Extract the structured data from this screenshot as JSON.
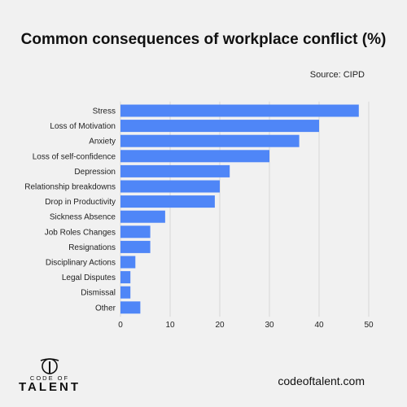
{
  "brand": {
    "url": "codeoftalent.com",
    "logo_line1": "CODE OF",
    "logo_line2": "TALENT"
  },
  "colors": {
    "bar": "#4f86f7",
    "grid": "#d6d6d6",
    "background": "#f1f1f1"
  },
  "chart_data": {
    "type": "bar",
    "orientation": "horizontal",
    "title": "Common consequences of workplace conflict (%)",
    "source": "Source: CIPD",
    "categories": [
      "Stress",
      "Loss of Motivation",
      "Anxiety",
      "Loss of self-confidence",
      "Depression",
      "Relationship breakdowns",
      "Drop in Productivity",
      "Sickness Absence",
      "Job Roles Changes",
      "Resignations",
      "Disciplinary Actions",
      "Legal Disputes",
      "Dismissal",
      "Other"
    ],
    "values": [
      48,
      40,
      36,
      30,
      22,
      20,
      19,
      9,
      6,
      6,
      3,
      2,
      2,
      4
    ],
    "xlim": [
      0,
      50
    ],
    "xticks": [
      0,
      10,
      20,
      30,
      40,
      50
    ],
    "grid": true,
    "legend": "none"
  }
}
